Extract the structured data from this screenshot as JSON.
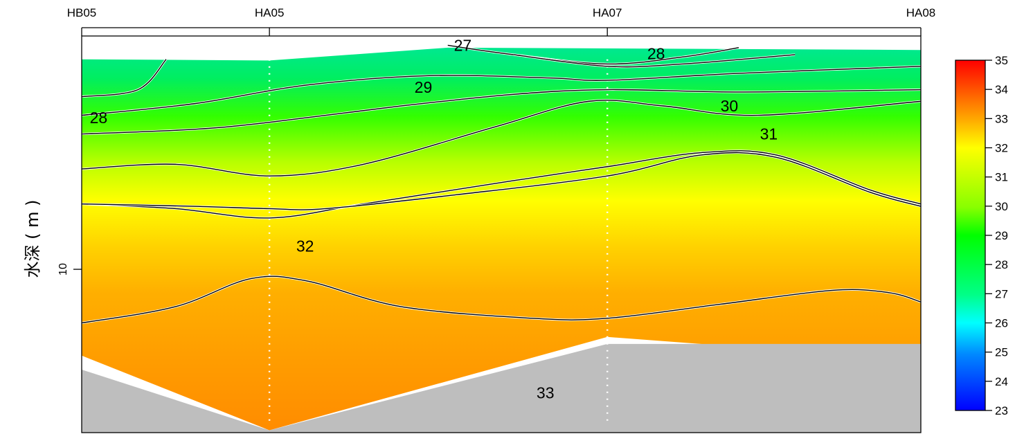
{
  "chart_data": {
    "type": "heatmap",
    "title": "",
    "xlabel": "",
    "ylabel": "水深 ( m )",
    "stations": [
      {
        "name": "HB05",
        "x": 0.0
      },
      {
        "name": "HA05",
        "x": 1.0
      },
      {
        "name": "HA07",
        "x": 2.8
      },
      {
        "name": "HA08",
        "x": 4.47
      }
    ],
    "depth_ticks": [
      10
    ],
    "depth_range": [
      0,
      17
    ],
    "bottom_depth": [
      [
        0.0,
        14.3
      ],
      [
        1.0,
        16.9
      ],
      [
        2.8,
        13.2
      ],
      [
        4.47,
        13.2
      ]
    ],
    "data_bottom_depth": [
      [
        0.0,
        13.7
      ],
      [
        1.0,
        16.9
      ],
      [
        2.8,
        12.9
      ],
      [
        4.47,
        13.9
      ]
    ],
    "contours": [
      {
        "level": 27,
        "label": "27",
        "points": [
          [
            1.95,
            0.4
          ],
          [
            2.3,
            0.8
          ],
          [
            2.8,
            1.2
          ],
          [
            3.2,
            0.9
          ],
          [
            3.5,
            0.5
          ]
        ]
      },
      {
        "level": 28,
        "label": "28",
        "points": [
          [
            0.0,
            2.6
          ],
          [
            0.3,
            2.3
          ],
          [
            0.45,
            1.0
          ]
        ]
      },
      {
        "level": 28,
        "label": "28",
        "points": [
          [
            2.3,
            0.8
          ],
          [
            2.8,
            1.3
          ],
          [
            3.2,
            1.2
          ],
          [
            3.8,
            0.8
          ]
        ]
      },
      {
        "level": 29,
        "label": "29",
        "points": [
          [
            0.0,
            3.4
          ],
          [
            0.6,
            2.9
          ],
          [
            1.2,
            2.1
          ],
          [
            1.85,
            1.7
          ],
          [
            2.5,
            1.8
          ],
          [
            2.8,
            1.9
          ],
          [
            3.5,
            1.6
          ],
          [
            4.47,
            1.3
          ]
        ]
      },
      {
        "level": 30,
        "label": "30",
        "points": [
          [
            0.0,
            4.2
          ],
          [
            0.6,
            4.0
          ],
          [
            1.0,
            3.7
          ],
          [
            1.7,
            3.0
          ],
          [
            2.3,
            2.5
          ],
          [
            2.8,
            2.3
          ],
          [
            3.5,
            2.4
          ],
          [
            4.47,
            2.3
          ]
        ]
      },
      {
        "level": 31,
        "label": "31",
        "points": [
          [
            0.0,
            5.7
          ],
          [
            0.5,
            5.5
          ],
          [
            1.0,
            6.0
          ],
          [
            1.5,
            5.5
          ],
          [
            2.2,
            3.9
          ],
          [
            2.7,
            2.8
          ],
          [
            3.1,
            3.0
          ],
          [
            3.6,
            3.4
          ],
          [
            4.47,
            2.8
          ]
        ]
      },
      {
        "level": 31,
        "label": "",
        "points": [
          [
            0.0,
            7.2
          ],
          [
            0.5,
            7.4
          ],
          [
            1.0,
            7.8
          ],
          [
            1.5,
            7.2
          ],
          [
            2.3,
            6.2
          ],
          [
            2.8,
            5.6
          ],
          [
            3.3,
            5.0
          ],
          [
            3.7,
            5.1
          ],
          [
            4.2,
            6.6
          ],
          [
            4.47,
            7.2
          ]
        ]
      },
      {
        "level": 32,
        "label": "32",
        "points": [
          [
            0.0,
            7.2
          ],
          [
            0.6,
            7.3
          ],
          [
            1.0,
            7.4
          ],
          [
            1.3,
            7.4
          ],
          [
            2.0,
            6.8
          ],
          [
            2.8,
            6.0
          ],
          [
            3.3,
            5.1
          ],
          [
            3.7,
            5.2
          ],
          [
            4.2,
            6.7
          ],
          [
            4.47,
            7.3
          ]
        ]
      },
      {
        "level": 33,
        "label": "33",
        "points": [
          [
            0.0,
            12.3
          ],
          [
            0.5,
            11.6
          ],
          [
            0.9,
            10.4
          ],
          [
            1.2,
            10.5
          ],
          [
            1.7,
            11.6
          ],
          [
            2.4,
            12.1
          ],
          [
            2.8,
            12.1
          ],
          [
            3.4,
            11.5
          ],
          [
            4.0,
            10.9
          ],
          [
            4.3,
            11.0
          ],
          [
            4.47,
            11.4
          ]
        ]
      }
    ],
    "colorbar": {
      "min": 23,
      "max": 35,
      "ticks": [
        35,
        34,
        33,
        32,
        31,
        30,
        29,
        28,
        27,
        26,
        25,
        24,
        23
      ],
      "colors": [
        "#0000ff",
        "#0088ff",
        "#00ffff",
        "#00ff88",
        "#00ff00",
        "#88ff00",
        "#ffff00",
        "#ffcc00",
        "#ff9900",
        "#ff6600",
        "#ff0000"
      ]
    },
    "grid": false,
    "legend": "right"
  }
}
